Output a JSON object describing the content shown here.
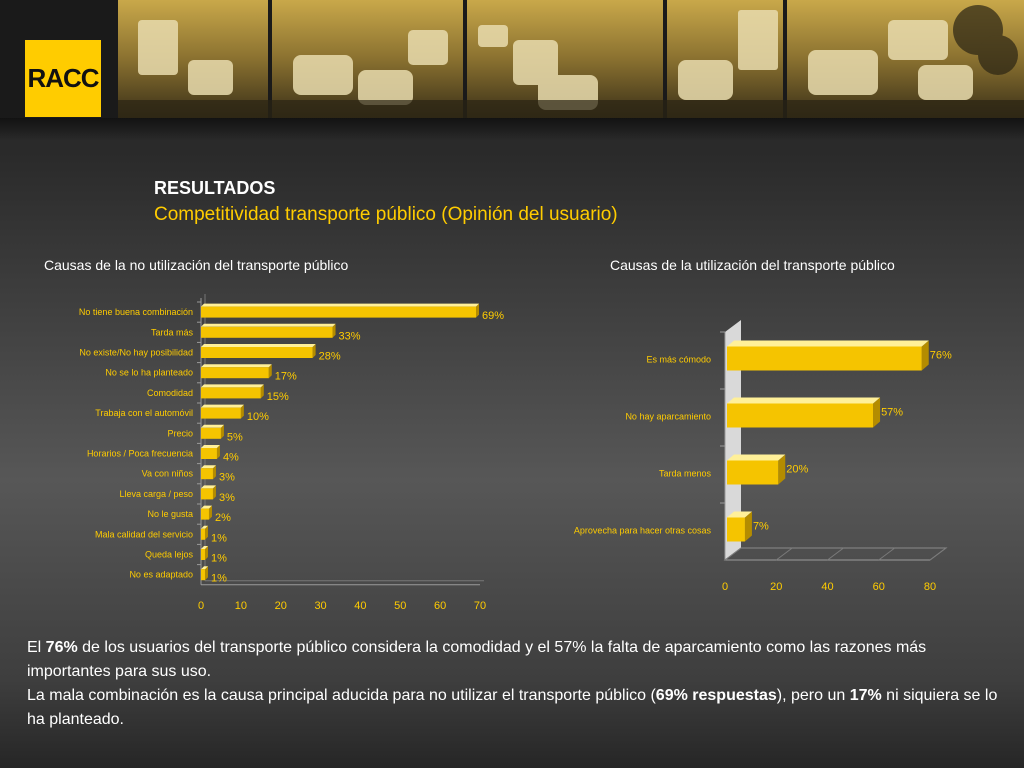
{
  "logo": {
    "text": "RACC"
  },
  "header": {
    "title": "RESULTADOS",
    "subtitle": "Competitividad transporte público (Opinión del usuario)"
  },
  "colors": {
    "accent": "#ffcc00",
    "bar": "#f5c400",
    "bar_top": "#fff099",
    "bar_side": "#b48c00"
  },
  "chart_data": [
    {
      "type": "bar",
      "orientation": "horizontal",
      "title": "Causas de la no utilización del transporte público",
      "categories": [
        "No tiene buena combinación",
        "Tarda más",
        "No existe/No hay posibilidad",
        "No se lo ha planteado",
        "Comodidad",
        "Trabaja con el automóvil",
        "Precio",
        "Horarios / Poca frecuencia",
        "Va con niños",
        "Lleva carga / peso",
        "No le gusta",
        "Mala calidad del servicio",
        "Queda lejos",
        "No es adaptado"
      ],
      "values": [
        69,
        33,
        28,
        17,
        15,
        10,
        5,
        4,
        3,
        3,
        2,
        1,
        1,
        1
      ],
      "value_labels": [
        "69%",
        "33%",
        "28%",
        "17%",
        "15%",
        "10%",
        "5%",
        "4%",
        "3%",
        "3%",
        "2%",
        "1%",
        "1%",
        "1%"
      ],
      "xlim": [
        0,
        70
      ],
      "xticks": [
        "0",
        "10",
        "20",
        "30",
        "40",
        "50",
        "60",
        "70"
      ],
      "grid": false
    },
    {
      "type": "bar",
      "orientation": "horizontal",
      "style": "3d",
      "title": "Causas de la utilización del transporte público",
      "categories": [
        "Es más cómodo",
        "No hay aparcamiento",
        "Tarda menos",
        "Aprovecha para hacer otras cosas"
      ],
      "values": [
        76,
        57,
        20,
        7
      ],
      "value_labels": [
        "76%",
        "57%",
        "20%",
        "7%"
      ],
      "xlim": [
        0,
        80
      ],
      "xticks": [
        "0",
        "20",
        "40",
        "60",
        "80"
      ],
      "grid": false
    }
  ],
  "footer": {
    "p1_pre": "El ",
    "p1_b1": "76%",
    "p1_mid": " de los usuarios del transporte público considera la comodidad y el 57% la falta de aparcamiento como las razones más importantes para sus uso.",
    "p2_pre": "La mala combinación es la causa principal aducida para no utilizar el transporte público (",
    "p2_b1": "69% respuestas",
    "p2_mid": "), pero un ",
    "p2_b2": "17%",
    "p2_post": " ni siquiera se lo ha planteado."
  }
}
